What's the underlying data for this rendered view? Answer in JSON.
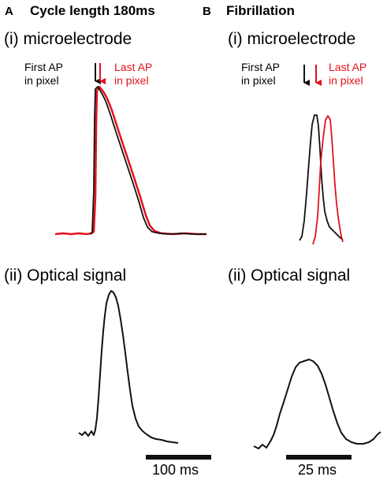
{
  "colors": {
    "black": "#111111",
    "red": "#e3111b"
  },
  "panel_a": {
    "letter": "A",
    "title": "Cycle length 180ms",
    "micro_label": "(i) microelectrode",
    "first_label": [
      "First AP",
      "in pixel"
    ],
    "last_label": [
      "Last AP",
      "in pixel"
    ],
    "optical_label": "(ii) Optical signal",
    "scale_label": "100 ms"
  },
  "panel_b": {
    "letter": "B",
    "title": "Fibrillation",
    "micro_label": "(i) microelectrode",
    "first_label": [
      "First AP",
      "in pixel"
    ],
    "last_label": [
      "Last AP",
      "in pixel"
    ],
    "optical_label": "(ii) Optical signal",
    "scale_label": "25 ms"
  }
}
